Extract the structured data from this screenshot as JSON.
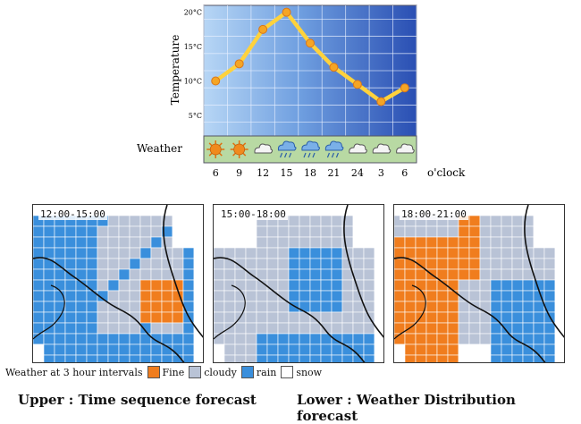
{
  "chart_data": {
    "type": "line",
    "ylabel": "Temperature",
    "y_ticks": [
      "20°C",
      "15°C",
      "10°C",
      "5°C"
    ],
    "y_tick_values": [
      20,
      15,
      10,
      5
    ],
    "ylim": [
      2,
      21
    ],
    "x": [
      "6",
      "9",
      "12",
      "15",
      "18",
      "21",
      "24",
      "3",
      "6"
    ],
    "xlabel": "o'clock",
    "series": [
      {
        "values": [
          10,
          12.5,
          17.5,
          20,
          15.5,
          12,
          9.5,
          7,
          9
        ]
      }
    ],
    "weather_label": "Weather",
    "weather_icons": [
      "sun-icon",
      "sun-icon",
      "cloud-icon",
      "rain-icon",
      "rain-icon",
      "rain-icon",
      "cloud-icon",
      "cloud-icon",
      "cloud-icon"
    ],
    "grid": true
  },
  "maps": [
    {
      "label": "12:00-15:00"
    },
    {
      "label": "15:00-18:00"
    },
    {
      "label": "18:00-21:00"
    }
  ],
  "legend": {
    "title": "Weather at 3 hour intervals",
    "items": [
      {
        "label": "Fine",
        "color": "#f07d1e"
      },
      {
        "label": "cloudy",
        "color": "#b9c3d6"
      },
      {
        "label": "rain",
        "color": "#3a8fdc"
      },
      {
        "label": "snow",
        "color": "#ffffff"
      }
    ]
  },
  "caption": {
    "upper": "Upper : Time sequence forecast",
    "lower": "Lower : Weather Distribution forecast"
  },
  "colors": {
    "line": "#ffd23c",
    "marker": "#f5a524",
    "plot_top": "#9fc6f0",
    "plot_bottom": "#2f55b8",
    "weather_band": "#b8d9a3"
  }
}
